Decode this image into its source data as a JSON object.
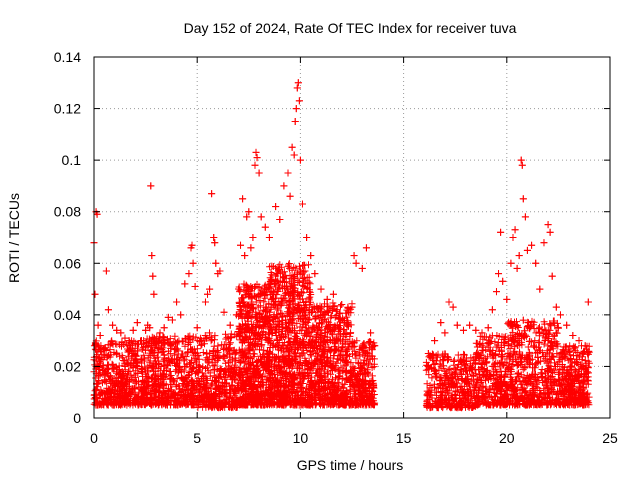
{
  "chart_data": {
    "type": "scatter",
    "title": "Day 152 of 2024, Rate Of TEC Index for receiver tuva",
    "xlabel": "GPS time / hours",
    "ylabel": "ROTI / TECUs",
    "xlim": [
      0,
      25
    ],
    "ylim": [
      0,
      0.14
    ],
    "xticks": [
      0,
      5,
      10,
      15,
      20,
      25
    ],
    "yticks": [
      0,
      0.02,
      0.04,
      0.06,
      0.08,
      0.1,
      0.12,
      0.14
    ],
    "xtick_labels": [
      "0",
      "5",
      "10",
      "15",
      "20",
      "25"
    ],
    "ytick_labels": [
      "0",
      "0.02",
      "0.04",
      "0.06",
      "0.08",
      "0.1",
      "0.12",
      "0.14"
    ],
    "grid": true,
    "marker": "+",
    "marker_color": "#ff0000",
    "series": [
      {
        "points": [
          [
            0.0,
            0.068
          ],
          [
            0.05,
            0.048
          ],
          [
            0.1,
            0.08
          ],
          [
            0.15,
            0.079
          ],
          [
            0.2,
            0.036
          ],
          [
            0.3,
            0.032
          ],
          [
            0.5,
            0.027
          ],
          [
            0.6,
            0.057
          ],
          [
            0.7,
            0.042
          ],
          [
            0.9,
            0.036
          ],
          [
            1.1,
            0.034
          ],
          [
            1.3,
            0.033
          ],
          [
            1.5,
            0.031
          ],
          [
            1.7,
            0.03
          ],
          [
            1.9,
            0.034
          ],
          [
            2.1,
            0.037
          ],
          [
            2.3,
            0.03
          ],
          [
            2.5,
            0.034
          ],
          [
            2.6,
            0.036
          ],
          [
            2.7,
            0.035
          ],
          [
            2.75,
            0.09
          ],
          [
            2.8,
            0.063
          ],
          [
            2.85,
            0.055
          ],
          [
            2.9,
            0.048
          ],
          [
            3.0,
            0.029
          ],
          [
            3.2,
            0.033
          ],
          [
            3.4,
            0.035
          ],
          [
            3.6,
            0.039
          ],
          [
            3.8,
            0.038
          ],
          [
            4.0,
            0.045
          ],
          [
            4.2,
            0.04
          ],
          [
            4.4,
            0.052
          ],
          [
            4.6,
            0.056
          ],
          [
            4.7,
            0.066
          ],
          [
            4.75,
            0.067
          ],
          [
            4.8,
            0.06
          ],
          [
            4.9,
            0.051
          ],
          [
            5.0,
            0.035
          ],
          [
            5.2,
            0.03
          ],
          [
            5.4,
            0.045
          ],
          [
            5.5,
            0.048
          ],
          [
            5.6,
            0.05
          ],
          [
            5.7,
            0.087
          ],
          [
            5.8,
            0.07
          ],
          [
            5.85,
            0.068
          ],
          [
            5.9,
            0.06
          ],
          [
            6.0,
            0.056
          ],
          [
            6.1,
            0.057
          ],
          [
            6.3,
            0.041
          ],
          [
            6.6,
            0.036
          ],
          [
            6.9,
            0.04
          ],
          [
            7.1,
            0.067
          ],
          [
            7.2,
            0.085
          ],
          [
            7.3,
            0.063
          ],
          [
            7.4,
            0.078
          ],
          [
            7.5,
            0.08
          ],
          [
            7.6,
            0.066
          ],
          [
            7.7,
            0.07
          ],
          [
            7.8,
            0.098
          ],
          [
            7.85,
            0.103
          ],
          [
            7.9,
            0.101
          ],
          [
            8.0,
            0.095
          ],
          [
            8.1,
            0.078
          ],
          [
            8.3,
            0.074
          ],
          [
            8.5,
            0.07
          ],
          [
            8.8,
            0.082
          ],
          [
            9.0,
            0.077
          ],
          [
            9.2,
            0.09
          ],
          [
            9.4,
            0.095
          ],
          [
            9.5,
            0.086
          ],
          [
            9.6,
            0.105
          ],
          [
            9.7,
            0.102
          ],
          [
            9.75,
            0.115
          ],
          [
            9.8,
            0.12
          ],
          [
            9.85,
            0.128
          ],
          [
            9.9,
            0.13
          ],
          [
            9.95,
            0.123
          ],
          [
            10.0,
            0.1
          ],
          [
            10.1,
            0.083
          ],
          [
            10.3,
            0.07
          ],
          [
            10.5,
            0.063
          ],
          [
            10.7,
            0.056
          ],
          [
            11.0,
            0.05
          ],
          [
            11.3,
            0.046
          ],
          [
            11.6,
            0.048
          ],
          [
            12.0,
            0.044
          ],
          [
            12.3,
            0.037
          ],
          [
            12.5,
            0.043
          ],
          [
            12.6,
            0.063
          ],
          [
            12.7,
            0.06
          ],
          [
            13.0,
            0.058
          ],
          [
            13.2,
            0.066
          ],
          [
            13.4,
            0.033
          ],
          [
            13.6,
            0.028
          ],
          [
            16.2,
            0.025
          ],
          [
            16.5,
            0.03
          ],
          [
            16.8,
            0.037
          ],
          [
            17.0,
            0.033
          ],
          [
            17.2,
            0.045
          ],
          [
            17.4,
            0.043
          ],
          [
            17.6,
            0.036
          ],
          [
            17.9,
            0.034
          ],
          [
            18.2,
            0.036
          ],
          [
            18.5,
            0.034
          ],
          [
            18.8,
            0.033
          ],
          [
            19.1,
            0.035
          ],
          [
            19.3,
            0.042
          ],
          [
            19.5,
            0.049
          ],
          [
            19.6,
            0.056
          ],
          [
            19.7,
            0.072
          ],
          [
            19.8,
            0.053
          ],
          [
            20.0,
            0.046
          ],
          [
            20.2,
            0.06
          ],
          [
            20.3,
            0.07
          ],
          [
            20.4,
            0.073
          ],
          [
            20.5,
            0.058
          ],
          [
            20.6,
            0.063
          ],
          [
            20.7,
            0.1
          ],
          [
            20.75,
            0.098
          ],
          [
            20.8,
            0.085
          ],
          [
            20.9,
            0.078
          ],
          [
            21.0,
            0.065
          ],
          [
            21.2,
            0.067
          ],
          [
            21.4,
            0.06
          ],
          [
            21.6,
            0.05
          ],
          [
            21.8,
            0.068
          ],
          [
            22.0,
            0.075
          ],
          [
            22.1,
            0.072
          ],
          [
            22.2,
            0.055
          ],
          [
            22.4,
            0.043
          ],
          [
            22.6,
            0.04
          ],
          [
            22.9,
            0.036
          ],
          [
            23.2,
            0.032
          ],
          [
            23.5,
            0.03
          ],
          [
            23.8,
            0.028
          ],
          [
            23.95,
            0.045
          ]
        ],
        "dense_segments": [
          {
            "x_range": [
              0.0,
              2.5
            ],
            "y_range": [
              0.005,
              0.03
            ],
            "count": 520
          },
          {
            "x_range": [
              2.5,
              5.0
            ],
            "y_range": [
              0.005,
              0.032
            ],
            "count": 520
          },
          {
            "x_range": [
              5.0,
              7.0
            ],
            "y_range": [
              0.004,
              0.033
            ],
            "count": 420
          },
          {
            "x_range": [
              7.0,
              8.5
            ],
            "y_range": [
              0.005,
              0.052
            ],
            "count": 640
          },
          {
            "x_range": [
              8.5,
              10.5
            ],
            "y_range": [
              0.005,
              0.06
            ],
            "count": 860
          },
          {
            "x_range": [
              10.5,
              12.5
            ],
            "y_range": [
              0.005,
              0.045
            ],
            "count": 620
          },
          {
            "x_range": [
              12.5,
              13.6
            ],
            "y_range": [
              0.005,
              0.03
            ],
            "count": 260
          },
          {
            "x_range": [
              16.1,
              18.5
            ],
            "y_range": [
              0.004,
              0.025
            ],
            "count": 380
          },
          {
            "x_range": [
              18.5,
              20.0
            ],
            "y_range": [
              0.005,
              0.032
            ],
            "count": 300
          },
          {
            "x_range": [
              20.0,
              22.5
            ],
            "y_range": [
              0.005,
              0.038
            ],
            "count": 560
          },
          {
            "x_range": [
              22.5,
              24.0
            ],
            "y_range": [
              0.005,
              0.028
            ],
            "count": 340
          }
        ]
      }
    ]
  }
}
